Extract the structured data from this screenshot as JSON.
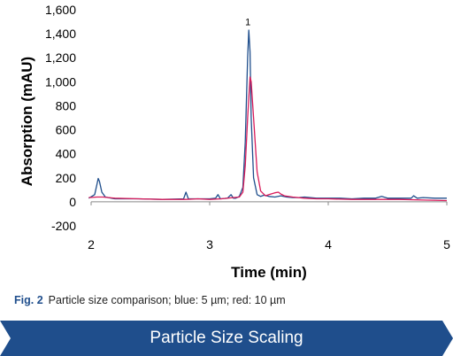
{
  "chart_data": {
    "type": "line",
    "title": "",
    "xlabel": "Time (min)",
    "ylabel": "Absorption (mAU)",
    "xlim": [
      2,
      5
    ],
    "ylim": [
      -200,
      1600
    ],
    "x_ticks": [
      2,
      3,
      4,
      5
    ],
    "x_tick_labels": [
      "2",
      "3",
      "4",
      "5"
    ],
    "y_ticks": [
      -200,
      0,
      200,
      400,
      600,
      800,
      1000,
      1200,
      1400,
      1600
    ],
    "y_tick_labels": [
      "-200",
      "0",
      "200",
      "400",
      "600",
      "800",
      "1,000",
      "1,200",
      "1,400",
      "1,600"
    ],
    "grid": false,
    "annotations": [
      {
        "text": "1",
        "x": 3.33,
        "y": 1470
      }
    ],
    "series": [
      {
        "color": "#1f4e8c",
        "x": [
          1.98,
          2.03,
          2.05,
          2.06,
          2.07,
          2.09,
          2.12,
          2.2,
          2.4,
          2.6,
          2.78,
          2.8,
          2.82,
          2.9,
          3.0,
          3.05,
          3.07,
          3.09,
          3.15,
          3.18,
          3.2,
          3.22,
          3.25,
          3.28,
          3.3,
          3.32,
          3.33,
          3.34,
          3.35,
          3.37,
          3.4,
          3.43,
          3.46,
          3.5,
          3.55,
          3.6,
          3.65,
          3.7,
          3.75,
          3.8,
          3.9,
          4.0,
          4.1,
          4.2,
          4.3,
          4.4,
          4.45,
          4.5,
          4.6,
          4.7,
          4.72,
          4.75,
          4.8,
          4.9,
          5.0
        ],
        "y": [
          30,
          60,
          150,
          195,
          170,
          80,
          40,
          25,
          25,
          20,
          25,
          80,
          25,
          25,
          25,
          30,
          60,
          25,
          30,
          60,
          30,
          30,
          45,
          120,
          500,
          1200,
          1430,
          1250,
          700,
          200,
          60,
          45,
          55,
          45,
          40,
          50,
          40,
          35,
          35,
          40,
          30,
          30,
          30,
          25,
          30,
          30,
          45,
          30,
          30,
          30,
          50,
          30,
          35,
          30,
          30
        ]
      },
      {
        "color": "#d81b5a",
        "x": [
          1.98,
          2.05,
          2.1,
          2.2,
          2.4,
          2.6,
          2.8,
          2.9,
          3.0,
          3.1,
          3.2,
          3.25,
          3.28,
          3.3,
          3.32,
          3.34,
          3.35,
          3.37,
          3.4,
          3.43,
          3.47,
          3.5,
          3.55,
          3.58,
          3.6,
          3.63,
          3.7,
          3.8,
          3.9,
          4.0,
          4.2,
          4.4,
          4.6,
          4.8,
          5.0
        ],
        "y": [
          35,
          40,
          40,
          30,
          25,
          20,
          20,
          25,
          20,
          25,
          35,
          40,
          80,
          300,
          700,
          1040,
          1000,
          700,
          250,
          90,
          50,
          60,
          75,
          80,
          65,
          50,
          40,
          30,
          25,
          25,
          20,
          20,
          20,
          15,
          10
        ]
      }
    ]
  },
  "caption": {
    "label": "Fig. 2",
    "text": "Particle size comparison; blue: 5 µm; red: 10 µm"
  },
  "banner": {
    "text": "Particle Size Scaling",
    "color": "#1f4e8c"
  }
}
